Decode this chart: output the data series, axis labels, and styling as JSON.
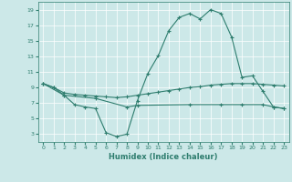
{
  "xlabel": "Humidex (Indice chaleur)",
  "background_color": "#cce8e8",
  "grid_color": "#b0d0d0",
  "line_color": "#2e7d6e",
  "xlim": [
    -0.5,
    23.5
  ],
  "ylim": [
    2.0,
    20.0
  ],
  "yticks": [
    3,
    5,
    7,
    9,
    11,
    13,
    15,
    17,
    19
  ],
  "xticks": [
    0,
    1,
    2,
    3,
    4,
    5,
    6,
    7,
    8,
    9,
    10,
    11,
    12,
    13,
    14,
    15,
    16,
    17,
    18,
    19,
    20,
    21,
    22,
    23
  ],
  "curve1_x": [
    0,
    1,
    2,
    3,
    4,
    5,
    6,
    7,
    8,
    9,
    10,
    11,
    12,
    13,
    14,
    15,
    16,
    17,
    18,
    19,
    20,
    21,
    22,
    23
  ],
  "curve1_y": [
    9.5,
    9.0,
    8.0,
    6.8,
    6.5,
    6.3,
    3.2,
    2.7,
    3.0,
    7.3,
    10.8,
    13.1,
    16.3,
    18.0,
    18.5,
    17.8,
    19.0,
    18.5,
    15.5,
    10.3,
    10.5,
    8.5,
    6.5,
    6.3
  ],
  "curve2_x": [
    0,
    1,
    2,
    3,
    4,
    5,
    6,
    7,
    8,
    9,
    10,
    11,
    12,
    13,
    14,
    15,
    16,
    17,
    18,
    19,
    20,
    21,
    22,
    23
  ],
  "curve2_y": [
    9.5,
    9.0,
    8.3,
    8.1,
    8.0,
    7.9,
    7.8,
    7.7,
    7.8,
    8.0,
    8.2,
    8.4,
    8.6,
    8.8,
    9.0,
    9.1,
    9.3,
    9.4,
    9.5,
    9.5,
    9.5,
    9.4,
    9.3,
    9.2
  ],
  "curve3_x": [
    0,
    2,
    5,
    8,
    9,
    14,
    17,
    19,
    21,
    22,
    23
  ],
  "curve3_y": [
    9.5,
    8.0,
    7.6,
    6.5,
    6.7,
    6.8,
    6.8,
    6.8,
    6.8,
    6.5,
    6.3
  ]
}
